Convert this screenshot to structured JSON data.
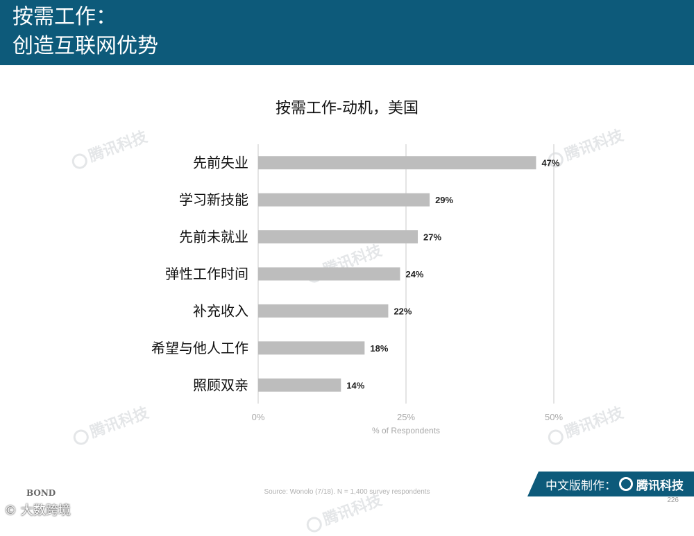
{
  "header": {
    "line1": "按需工作：",
    "line2": "创造互联网优势"
  },
  "chart_data": {
    "type": "bar",
    "orientation": "horizontal",
    "title": "按需工作-动机，美国",
    "categories": [
      "先前失业",
      "学习新技能",
      "先前未就业",
      "弹性工作时间",
      "补充收入",
      "希望与他人工作",
      "照顾双亲"
    ],
    "values": [
      47,
      29,
      27,
      24,
      22,
      18,
      14
    ],
    "value_labels": [
      "47%",
      "29%",
      "27%",
      "24%",
      "22%",
      "18%",
      "14%"
    ],
    "xlabel": "% of Respondents",
    "ylabel": "",
    "xlim": [
      0,
      50
    ],
    "xticks": [
      0,
      25,
      50
    ],
    "xtick_labels": [
      "0%",
      "25%",
      "50%"
    ],
    "grid": true,
    "bar_color": "#bdbdbd"
  },
  "footer": {
    "source": "Source: Wonolo (7/18). N = 1,400 survey respondents",
    "page_number": "226",
    "bond_label": "BOND",
    "corner_mark": "大数跨境",
    "badge_prefix": "中文版制作：",
    "badge_brand": "腾讯科技"
  },
  "watermarks": [
    "腾讯科技",
    "腾讯科技",
    "腾讯科技",
    "腾讯科技",
    "腾讯科技",
    "腾讯科技"
  ],
  "colors": {
    "header_bg": "#0d5a7a",
    "bar": "#bdbdbd",
    "gridline": "#dcdcdc"
  }
}
